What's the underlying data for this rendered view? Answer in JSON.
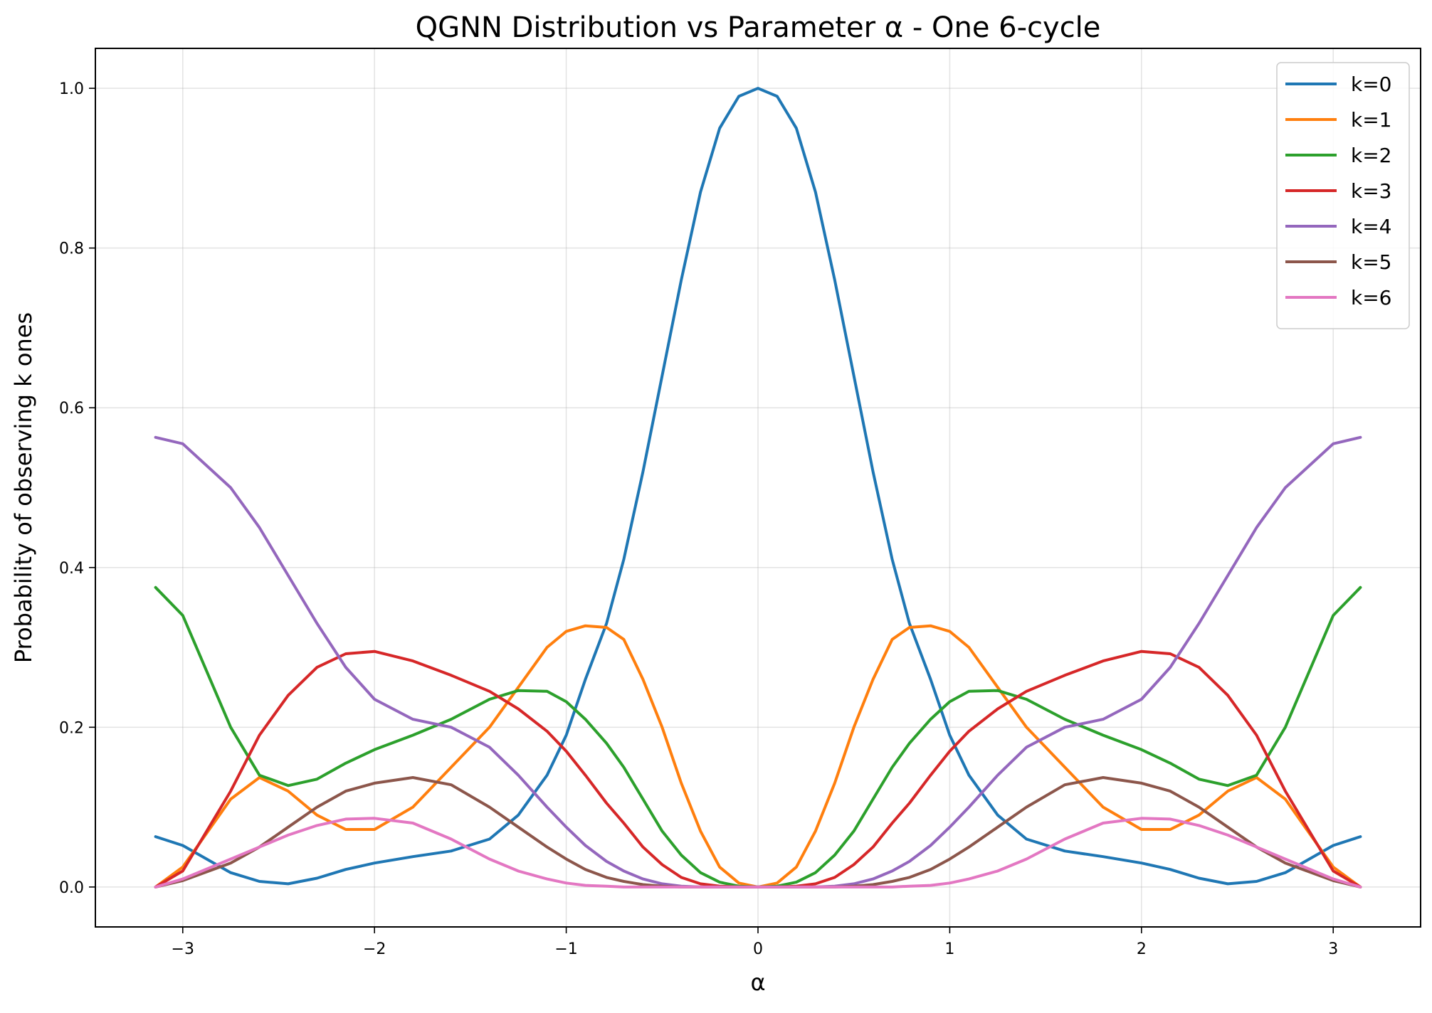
{
  "chart_data": {
    "type": "line",
    "title": "QGNN Distribution vs Parameter α - One 6-cycle",
    "xlabel": "α",
    "ylabel": "Probability of observing k ones",
    "xlim": [
      -3.4557,
      3.4557
    ],
    "ylim": [
      -0.05,
      1.05
    ],
    "xticks": [
      -3,
      -2,
      -1,
      0,
      1,
      2,
      3
    ],
    "xtick_labels": [
      "−3",
      "−2",
      "−1",
      "0",
      "1",
      "2",
      "3"
    ],
    "yticks": [
      0.0,
      0.2,
      0.4,
      0.6,
      0.8,
      1.0
    ],
    "ytick_labels": [
      "0.0",
      "0.2",
      "0.4",
      "0.6",
      "0.8",
      "1.0"
    ],
    "grid": true,
    "legend_position": "top-right",
    "x": [
      -3.1416,
      -3.0,
      -2.75,
      -2.6,
      -2.45,
      -2.3,
      -2.15,
      -2.0,
      -1.8,
      -1.6,
      -1.4,
      -1.25,
      -1.1,
      -1.0,
      -0.9,
      -0.79,
      -0.7,
      -0.6,
      -0.5,
      -0.4,
      -0.3,
      -0.2,
      -0.1,
      0.0,
      0.1,
      0.2,
      0.3,
      0.4,
      0.5,
      0.6,
      0.7,
      0.79,
      0.9,
      1.0,
      1.1,
      1.25,
      1.4,
      1.6,
      1.8,
      2.0,
      2.15,
      2.3,
      2.45,
      2.6,
      2.75,
      3.0,
      3.1416
    ],
    "series": [
      {
        "name": "k=0",
        "color": "#1f77b4",
        "values": [
          0.063,
          0.052,
          0.018,
          0.007,
          0.004,
          0.011,
          0.022,
          0.03,
          0.038,
          0.045,
          0.06,
          0.09,
          0.14,
          0.19,
          0.26,
          0.33,
          0.41,
          0.52,
          0.64,
          0.76,
          0.87,
          0.95,
          0.99,
          1.0,
          0.99,
          0.95,
          0.87,
          0.76,
          0.64,
          0.52,
          0.41,
          0.33,
          0.26,
          0.19,
          0.14,
          0.09,
          0.06,
          0.045,
          0.038,
          0.03,
          0.022,
          0.011,
          0.004,
          0.007,
          0.018,
          0.052,
          0.063
        ]
      },
      {
        "name": "k=1",
        "color": "#ff7f0e",
        "values": [
          0.0,
          0.025,
          0.11,
          0.137,
          0.12,
          0.09,
          0.072,
          0.072,
          0.1,
          0.15,
          0.2,
          0.25,
          0.3,
          0.32,
          0.327,
          0.325,
          0.31,
          0.26,
          0.2,
          0.13,
          0.07,
          0.025,
          0.005,
          0.0,
          0.005,
          0.025,
          0.07,
          0.13,
          0.2,
          0.26,
          0.31,
          0.325,
          0.327,
          0.32,
          0.3,
          0.25,
          0.2,
          0.15,
          0.1,
          0.072,
          0.072,
          0.09,
          0.12,
          0.137,
          0.11,
          0.025,
          0.0
        ]
      },
      {
        "name": "k=2",
        "color": "#2ca02c",
        "values": [
          0.375,
          0.34,
          0.2,
          0.14,
          0.127,
          0.135,
          0.155,
          0.172,
          0.19,
          0.21,
          0.235,
          0.246,
          0.245,
          0.232,
          0.21,
          0.18,
          0.15,
          0.11,
          0.07,
          0.04,
          0.018,
          0.006,
          0.001,
          0.0,
          0.001,
          0.006,
          0.018,
          0.04,
          0.07,
          0.11,
          0.15,
          0.18,
          0.21,
          0.232,
          0.245,
          0.246,
          0.235,
          0.21,
          0.19,
          0.172,
          0.155,
          0.135,
          0.127,
          0.14,
          0.2,
          0.34,
          0.375
        ]
      },
      {
        "name": "k=3",
        "color": "#d62728",
        "values": [
          0.0,
          0.02,
          0.12,
          0.19,
          0.24,
          0.275,
          0.292,
          0.295,
          0.283,
          0.265,
          0.245,
          0.223,
          0.195,
          0.17,
          0.14,
          0.105,
          0.08,
          0.05,
          0.028,
          0.012,
          0.004,
          0.001,
          0.0,
          0.0,
          0.0,
          0.001,
          0.004,
          0.012,
          0.028,
          0.05,
          0.08,
          0.105,
          0.14,
          0.17,
          0.195,
          0.223,
          0.245,
          0.265,
          0.283,
          0.295,
          0.292,
          0.275,
          0.24,
          0.19,
          0.12,
          0.02,
          0.0
        ]
      },
      {
        "name": "k=4",
        "color": "#9467bd",
        "values": [
          0.563,
          0.555,
          0.5,
          0.45,
          0.39,
          0.33,
          0.275,
          0.235,
          0.21,
          0.2,
          0.175,
          0.14,
          0.1,
          0.075,
          0.052,
          0.032,
          0.02,
          0.01,
          0.004,
          0.001,
          0.0,
          0.0,
          0.0,
          0.0,
          0.0,
          0.0,
          0.0,
          0.001,
          0.004,
          0.01,
          0.02,
          0.032,
          0.052,
          0.075,
          0.1,
          0.14,
          0.175,
          0.2,
          0.21,
          0.235,
          0.275,
          0.33,
          0.39,
          0.45,
          0.5,
          0.555,
          0.563
        ]
      },
      {
        "name": "k=5",
        "color": "#8c564b",
        "values": [
          0.0,
          0.008,
          0.03,
          0.05,
          0.075,
          0.1,
          0.12,
          0.13,
          0.137,
          0.128,
          0.1,
          0.075,
          0.05,
          0.035,
          0.022,
          0.012,
          0.007,
          0.003,
          0.001,
          0.0,
          0.0,
          0.0,
          0.0,
          0.0,
          0.0,
          0.0,
          0.0,
          0.0,
          0.001,
          0.003,
          0.007,
          0.012,
          0.022,
          0.035,
          0.05,
          0.075,
          0.1,
          0.128,
          0.137,
          0.13,
          0.12,
          0.1,
          0.075,
          0.05,
          0.03,
          0.008,
          0.0
        ]
      },
      {
        "name": "k=6",
        "color": "#e377c2",
        "values": [
          0.0,
          0.01,
          0.035,
          0.05,
          0.065,
          0.077,
          0.085,
          0.086,
          0.08,
          0.06,
          0.035,
          0.02,
          0.01,
          0.005,
          0.002,
          0.001,
          0.0,
          0.0,
          0.0,
          0.0,
          0.0,
          0.0,
          0.0,
          0.0,
          0.0,
          0.0,
          0.0,
          0.0,
          0.0,
          0.0,
          0.0,
          0.001,
          0.002,
          0.005,
          0.01,
          0.02,
          0.035,
          0.06,
          0.08,
          0.086,
          0.085,
          0.077,
          0.065,
          0.05,
          0.035,
          0.01,
          0.0
        ]
      }
    ]
  }
}
